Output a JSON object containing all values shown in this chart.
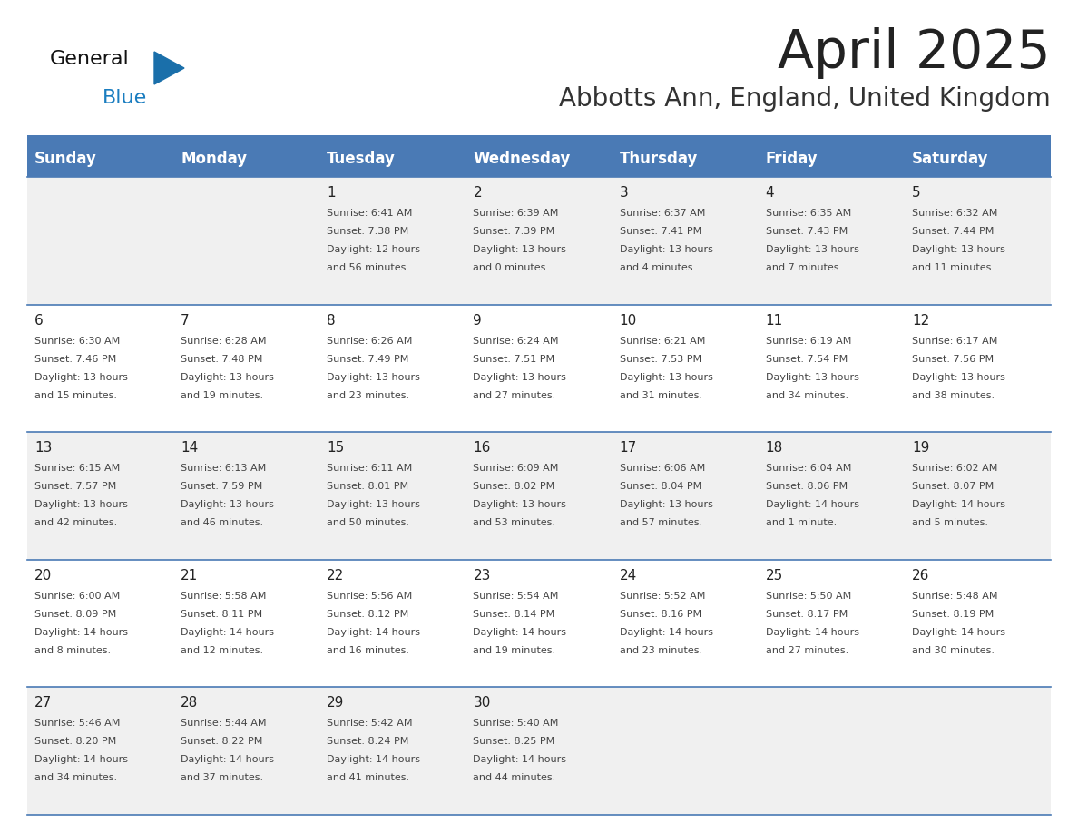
{
  "title": "April 2025",
  "subtitle": "Abbotts Ann, England, United Kingdom",
  "header_bg": "#4a7ab5",
  "header_text": "#ffffff",
  "row_bg_odd": "#f0f0f0",
  "row_bg_even": "#ffffff",
  "day_headers": [
    "Sunday",
    "Monday",
    "Tuesday",
    "Wednesday",
    "Thursday",
    "Friday",
    "Saturday"
  ],
  "title_color": "#222222",
  "subtitle_color": "#333333",
  "cell_text_color": "#444444",
  "cell_day_color": "#222222",
  "divider_color": "#4a7ab5",
  "logo_text_color": "#111111",
  "logo_blue_color": "#1a7dc0",
  "logo_triangle_color": "#1a6faa",
  "weeks": [
    [
      {
        "day": "",
        "sunrise": "",
        "sunset": "",
        "daylight": ""
      },
      {
        "day": "",
        "sunrise": "",
        "sunset": "",
        "daylight": ""
      },
      {
        "day": "1",
        "sunrise": "6:41 AM",
        "sunset": "7:38 PM",
        "daylight": "12 hours\nand 56 minutes."
      },
      {
        "day": "2",
        "sunrise": "6:39 AM",
        "sunset": "7:39 PM",
        "daylight": "13 hours\nand 0 minutes."
      },
      {
        "day": "3",
        "sunrise": "6:37 AM",
        "sunset": "7:41 PM",
        "daylight": "13 hours\nand 4 minutes."
      },
      {
        "day": "4",
        "sunrise": "6:35 AM",
        "sunset": "7:43 PM",
        "daylight": "13 hours\nand 7 minutes."
      },
      {
        "day": "5",
        "sunrise": "6:32 AM",
        "sunset": "7:44 PM",
        "daylight": "13 hours\nand 11 minutes."
      }
    ],
    [
      {
        "day": "6",
        "sunrise": "6:30 AM",
        "sunset": "7:46 PM",
        "daylight": "13 hours\nand 15 minutes."
      },
      {
        "day": "7",
        "sunrise": "6:28 AM",
        "sunset": "7:48 PM",
        "daylight": "13 hours\nand 19 minutes."
      },
      {
        "day": "8",
        "sunrise": "6:26 AM",
        "sunset": "7:49 PM",
        "daylight": "13 hours\nand 23 minutes."
      },
      {
        "day": "9",
        "sunrise": "6:24 AM",
        "sunset": "7:51 PM",
        "daylight": "13 hours\nand 27 minutes."
      },
      {
        "day": "10",
        "sunrise": "6:21 AM",
        "sunset": "7:53 PM",
        "daylight": "13 hours\nand 31 minutes."
      },
      {
        "day": "11",
        "sunrise": "6:19 AM",
        "sunset": "7:54 PM",
        "daylight": "13 hours\nand 34 minutes."
      },
      {
        "day": "12",
        "sunrise": "6:17 AM",
        "sunset": "7:56 PM",
        "daylight": "13 hours\nand 38 minutes."
      }
    ],
    [
      {
        "day": "13",
        "sunrise": "6:15 AM",
        "sunset": "7:57 PM",
        "daylight": "13 hours\nand 42 minutes."
      },
      {
        "day": "14",
        "sunrise": "6:13 AM",
        "sunset": "7:59 PM",
        "daylight": "13 hours\nand 46 minutes."
      },
      {
        "day": "15",
        "sunrise": "6:11 AM",
        "sunset": "8:01 PM",
        "daylight": "13 hours\nand 50 minutes."
      },
      {
        "day": "16",
        "sunrise": "6:09 AM",
        "sunset": "8:02 PM",
        "daylight": "13 hours\nand 53 minutes."
      },
      {
        "day": "17",
        "sunrise": "6:06 AM",
        "sunset": "8:04 PM",
        "daylight": "13 hours\nand 57 minutes."
      },
      {
        "day": "18",
        "sunrise": "6:04 AM",
        "sunset": "8:06 PM",
        "daylight": "14 hours\nand 1 minute."
      },
      {
        "day": "19",
        "sunrise": "6:02 AM",
        "sunset": "8:07 PM",
        "daylight": "14 hours\nand 5 minutes."
      }
    ],
    [
      {
        "day": "20",
        "sunrise": "6:00 AM",
        "sunset": "8:09 PM",
        "daylight": "14 hours\nand 8 minutes."
      },
      {
        "day": "21",
        "sunrise": "5:58 AM",
        "sunset": "8:11 PM",
        "daylight": "14 hours\nand 12 minutes."
      },
      {
        "day": "22",
        "sunrise": "5:56 AM",
        "sunset": "8:12 PM",
        "daylight": "14 hours\nand 16 minutes."
      },
      {
        "day": "23",
        "sunrise": "5:54 AM",
        "sunset": "8:14 PM",
        "daylight": "14 hours\nand 19 minutes."
      },
      {
        "day": "24",
        "sunrise": "5:52 AM",
        "sunset": "8:16 PM",
        "daylight": "14 hours\nand 23 minutes."
      },
      {
        "day": "25",
        "sunrise": "5:50 AM",
        "sunset": "8:17 PM",
        "daylight": "14 hours\nand 27 minutes."
      },
      {
        "day": "26",
        "sunrise": "5:48 AM",
        "sunset": "8:19 PM",
        "daylight": "14 hours\nand 30 minutes."
      }
    ],
    [
      {
        "day": "27",
        "sunrise": "5:46 AM",
        "sunset": "8:20 PM",
        "daylight": "14 hours\nand 34 minutes."
      },
      {
        "day": "28",
        "sunrise": "5:44 AM",
        "sunset": "8:22 PM",
        "daylight": "14 hours\nand 37 minutes."
      },
      {
        "day": "29",
        "sunrise": "5:42 AM",
        "sunset": "8:24 PM",
        "daylight": "14 hours\nand 41 minutes."
      },
      {
        "day": "30",
        "sunrise": "5:40 AM",
        "sunset": "8:25 PM",
        "daylight": "14 hours\nand 44 minutes."
      },
      {
        "day": "",
        "sunrise": "",
        "sunset": "",
        "daylight": ""
      },
      {
        "day": "",
        "sunrise": "",
        "sunset": "",
        "daylight": ""
      },
      {
        "day": "",
        "sunrise": "",
        "sunset": "",
        "daylight": ""
      }
    ]
  ]
}
